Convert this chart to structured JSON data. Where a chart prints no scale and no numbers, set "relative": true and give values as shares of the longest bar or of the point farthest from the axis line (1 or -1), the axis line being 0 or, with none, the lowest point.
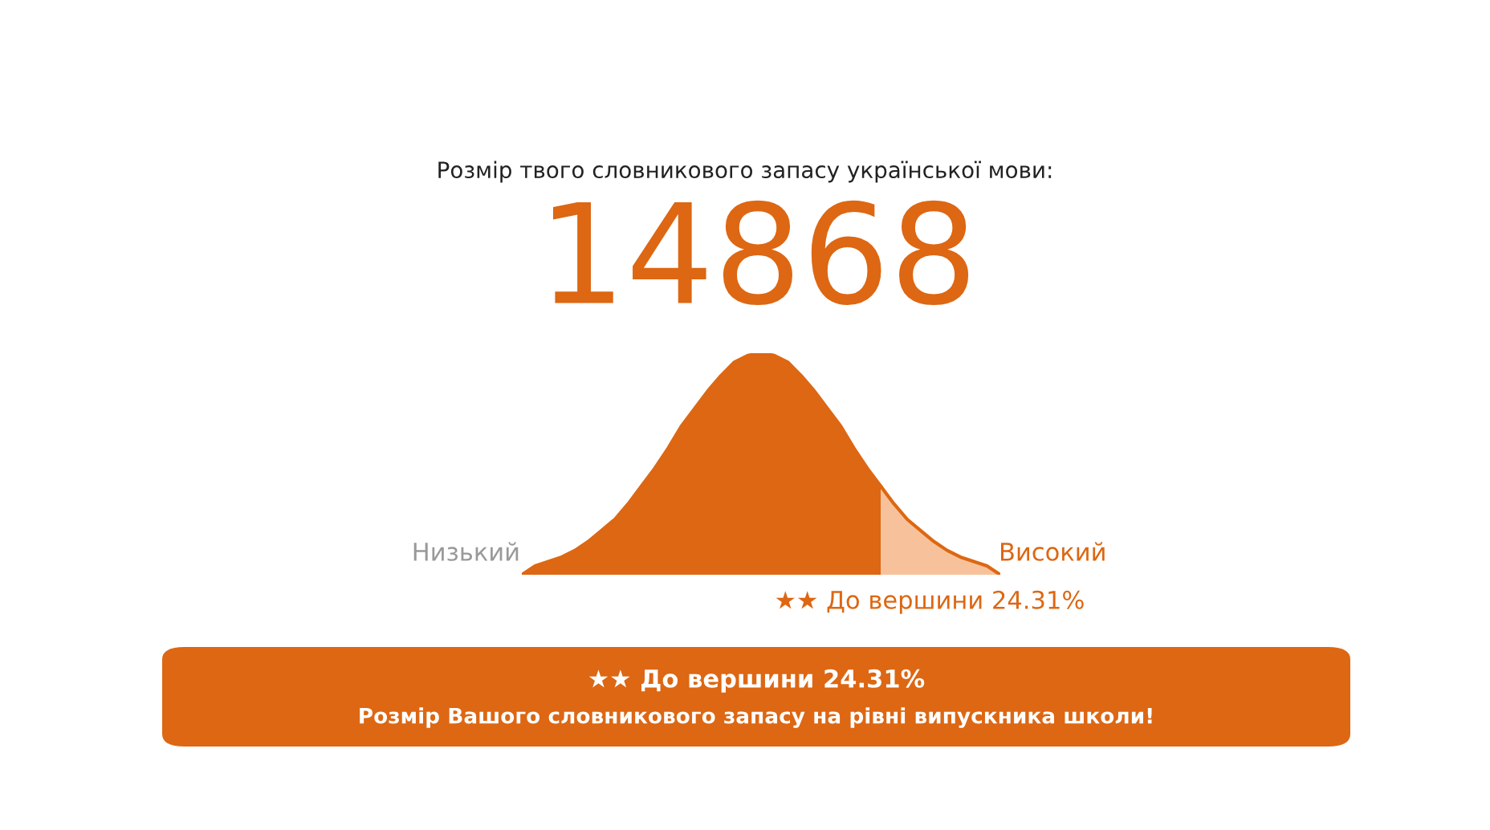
{
  "chart_data": {
    "type": "area",
    "relative": true,
    "title": "Розмір твого словникового запасу української мови:",
    "categories": [
      null,
      null,
      null,
      null,
      null,
      null,
      null,
      null,
      null,
      null,
      null,
      null,
      null,
      null,
      null,
      null,
      null,
      null,
      null,
      null,
      null,
      null,
      null,
      null,
      null,
      null,
      null,
      null,
      null,
      null,
      null,
      null,
      null,
      null,
      null,
      null,
      null
    ],
    "series": [
      {
        "color": "#dd6713",
        "values": [
          0,
          0.04,
          0.06,
          0.08,
          0.11,
          0.15,
          0.2,
          0.25,
          0.32,
          0.4,
          0.48,
          0.57,
          0.67,
          0.75,
          0.83,
          0.9,
          0.96,
          0.99,
          1,
          0.99,
          0.96,
          0.9,
          0.83,
          0.75,
          0.67,
          0.57,
          0.48,
          0.4,
          null,
          null,
          null,
          null,
          null,
          null,
          null,
          null,
          null
        ]
      },
      {
        "color": "#f7c29b",
        "values": [
          null,
          null,
          null,
          null,
          null,
          null,
          null,
          null,
          null,
          null,
          null,
          null,
          null,
          null,
          null,
          null,
          null,
          null,
          null,
          null,
          null,
          null,
          null,
          null,
          null,
          null,
          null,
          0.4,
          0.32,
          0.25,
          0.2,
          0.15,
          0.11,
          0.08,
          0.06,
          0.04,
          0
        ]
      }
    ],
    "annotations": [
      "14868",
      "Низький",
      "Високий",
      "★★ До вершини 24.31%",
      "★★ До вершини 24.31%",
      "Розмір Вашого словникового запасу на рівні випускника школи!"
    ]
  }
}
